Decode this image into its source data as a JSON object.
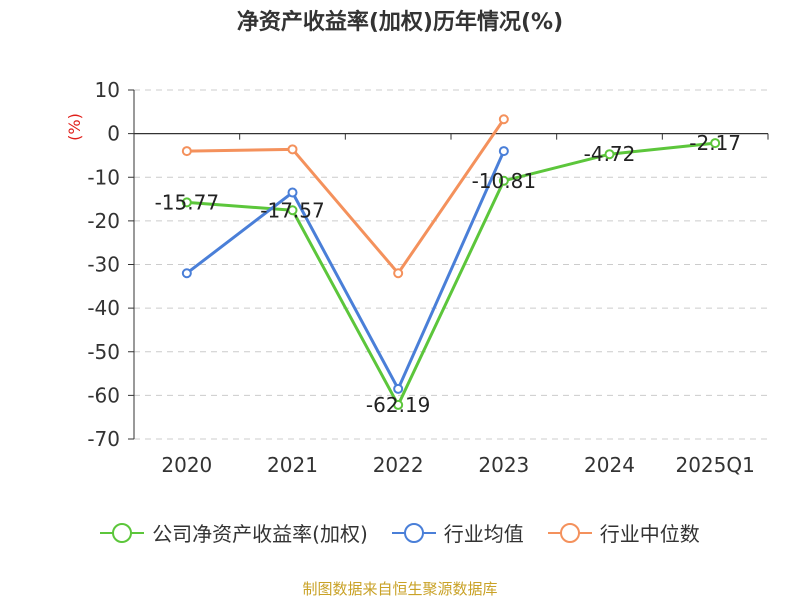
{
  "chart_data": {
    "type": "line",
    "title": "净资产收益率(加权)历年情况(%)",
    "ylabel": "(%)",
    "xlabel": "",
    "categories": [
      "2020",
      "2021",
      "2022",
      "2023",
      "2024",
      "2025Q1"
    ],
    "ylim": [
      -70,
      10
    ],
    "yticks": [
      10,
      0,
      -10,
      -20,
      -30,
      -40,
      -50,
      -60,
      -70
    ],
    "grid": true,
    "legend_position": "bottom",
    "series": [
      {
        "name": "公司净资产收益率(加权)",
        "color": "#5cc63b",
        "values": [
          -15.77,
          -17.57,
          -62.19,
          -10.81,
          -4.72,
          -2.17
        ],
        "labels": [
          "-15.77",
          "-17.57",
          "-62.19",
          "-10.81",
          "-4.72",
          "-2.17"
        ]
      },
      {
        "name": "行业均值",
        "color": "#4a7fd8",
        "values": [
          -32.0,
          -13.5,
          -58.5,
          -4.0,
          null,
          null
        ]
      },
      {
        "name": "行业中位数",
        "color": "#f4915c",
        "values": [
          -4.0,
          -3.6,
          -32.0,
          3.3,
          null,
          null
        ]
      }
    ]
  },
  "source_note": "制图数据来自恒生聚源数据库"
}
